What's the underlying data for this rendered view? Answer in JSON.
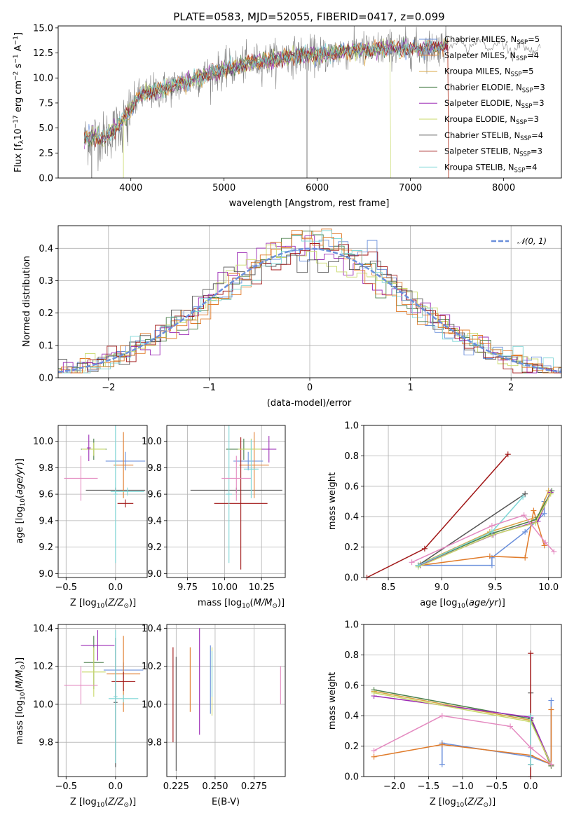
{
  "colors": [
    "#6A8FDB",
    "#E07B2A",
    "#D9A441",
    "#4A7F4A",
    "#9B2AB5",
    "#C8D96A",
    "#555555",
    "#A01515",
    "#7ED6D6"
  ],
  "chart_data": [
    {
      "id": "spectrum",
      "type": "line",
      "title": "PLATE=0583, MJD=52055, FIBERID=0417, z=0.099",
      "xlabel": "wavelength [Angstrom, rest frame]",
      "ylabel": "Flux [f$_\\lambda$10$^{-17}$ erg cm$^{-2}$ s$^{-1}$ A$^{-1}$]",
      "xlim": [
        3220,
        8620
      ],
      "ylim": [
        0,
        15.2
      ],
      "xticks": [
        "4000",
        "5000",
        "6000",
        "7000",
        "8000"
      ],
      "yticks": [
        "0.0",
        "2.5",
        "5.0",
        "7.5",
        "10.0",
        "12.5",
        "15.0"
      ],
      "legend_position": "right",
      "legend": [
        "Chabrier MILES, N$_{SSP}$=5",
        "Salpeter MILES, N$_{SSP}$=4",
        "Kroupa MILES, N$_{SSP}$=5",
        "Chabrier ELODIE, N$_{SSP}$=3",
        "Salpeter ELODIE, N$_{SSP}$=3",
        "Kroupa ELODIE, N$_{SSP}$=3",
        "Chabrier STELIB, N$_{SSP}$=4",
        "Salpeter STELIB, N$_{SSP}$=3",
        "Kroupa STELIB, N$_{SSP}$=4"
      ],
      "continuum": {
        "x": [
          3500,
          3600,
          3700,
          3800,
          3900,
          4000,
          4100,
          4200,
          4400,
          4600,
          4800,
          5000,
          5200,
          5400,
          5600,
          5800,
          6000,
          6200,
          6400,
          6600,
          6800,
          7000,
          7200,
          7400,
          7600,
          7800,
          8000,
          8200,
          8400
        ],
        "y": [
          3.8,
          4.2,
          4.0,
          4.6,
          5.5,
          7.0,
          8.2,
          8.5,
          9.0,
          9.6,
          10.3,
          10.8,
          11.3,
          11.7,
          12.0,
          12.3,
          12.3,
          12.5,
          12.8,
          12.8,
          13.0,
          12.9,
          13.0,
          13.3,
          13.4,
          13.3,
          13.2,
          13.0,
          12.9
        ]
      }
    },
    {
      "id": "residuals",
      "type": "line",
      "xlabel": "(data-model)/error",
      "ylabel": "Normed distribution",
      "xlim": [
        -2.5,
        2.5
      ],
      "ylim": [
        0,
        0.47
      ],
      "xticks": [
        "−2",
        "−1",
        "0",
        "1",
        "2"
      ],
      "yticks": [
        "0.0",
        "0.1",
        "0.2",
        "0.3",
        "0.4"
      ],
      "legend": [
        "$\\mathcal{N}(0,1)$"
      ],
      "legend_position": "top-right"
    },
    {
      "id": "age_vs_Z",
      "type": "scatter",
      "xlabel": "Z [log$_{10}$(Z/Z$_\\odot$)]",
      "ylabel": "age  [log$_{10}$(age/yr)]",
      "xlim": [
        -0.58,
        0.32
      ],
      "ylim": [
        8.97,
        10.12
      ],
      "xticks": [
        "−0.5",
        "0.0"
      ],
      "xtickv": [
        -0.5,
        0.0
      ],
      "yticks": [
        "9.0",
        "9.2",
        "9.4",
        "9.6",
        "9.8",
        "10.0"
      ],
      "ytickv": [
        9.0,
        9.2,
        9.4,
        9.6,
        9.8,
        10.0
      ]
    },
    {
      "id": "age_vs_mass",
      "type": "scatter",
      "xlabel": "mass [log$_{10}$(M/M$_\\odot$)]",
      "xlim": [
        9.61,
        10.41
      ],
      "ylim": [
        8.97,
        10.12
      ],
      "xticks": [
        "9.75",
        "10.00",
        "10.25"
      ],
      "xtickv": [
        9.75,
        10.0,
        10.25
      ],
      "yticks": [
        "9.0",
        "9.2",
        "9.4",
        "9.6",
        "9.8",
        "10.0"
      ],
      "ytickv": [
        9.0,
        9.2,
        9.4,
        9.6,
        9.8,
        10.0
      ]
    },
    {
      "id": "weight_vs_age",
      "type": "line",
      "xlabel": "age  [log$_{10}$(age/yr)]",
      "ylabel": "mass weight",
      "xlim": [
        8.27,
        10.12
      ],
      "ylim": [
        0,
        1.0
      ],
      "xticks": [
        "8.5",
        "9.0",
        "9.5",
        "10.0"
      ],
      "xtickv": [
        8.5,
        9.0,
        9.5,
        10.0
      ],
      "yticks": [
        "0.0",
        "0.2",
        "0.4",
        "0.6",
        "0.8",
        "1.0"
      ],
      "ytickv": [
        0,
        0.2,
        0.4,
        0.6,
        0.8,
        1.0
      ],
      "series": [
        {
          "x": [
            8.78,
            9.47,
            9.47,
            9.78,
            9.96,
            9.96
          ],
          "y": [
            0.08,
            0.08,
            0.13,
            0.3,
            0.42,
            0.5
          ]
        },
        {
          "x": [
            8.8,
            9.45,
            9.78,
            9.86,
            9.96
          ],
          "y": [
            0.08,
            0.14,
            0.13,
            0.44,
            0.21
          ]
        },
        {
          "x": [
            8.8,
            9.45,
            9.9,
            10.0
          ],
          "y": [
            0.09,
            0.3,
            0.4,
            0.57
          ]
        },
        {
          "x": [
            8.78,
            9.47,
            9.88,
            10.03
          ],
          "y": [
            0.08,
            0.29,
            0.38,
            0.57
          ]
        },
        {
          "x": [
            8.8,
            9.48,
            9.9,
            10.02
          ],
          "y": [
            0.08,
            0.28,
            0.37,
            0.56
          ]
        },
        {
          "x": [
            8.78,
            9.47,
            9.88,
            10.02
          ],
          "y": [
            0.07,
            0.28,
            0.36,
            0.55
          ]
        },
        {
          "x": [
            8.78,
            9.78
          ],
          "y": [
            0.08,
            0.55
          ]
        },
        {
          "x": [
            8.3,
            8.84,
            9.62
          ],
          "y": [
            0.0,
            0.19,
            0.81
          ]
        },
        {
          "x": [
            8.78,
            9.47,
            9.76
          ],
          "y": [
            0.08,
            0.3,
            0.53
          ]
        },
        {
          "x": [
            8.72,
            9.47,
            9.77,
            9.97,
            10.05
          ],
          "y": [
            0.1,
            0.34,
            0.41,
            0.23,
            0.17
          ]
        }
      ]
    },
    {
      "id": "mass_vs_Z",
      "type": "scatter",
      "xlabel": "Z [log$_{10}$(Z/Z$_\\odot$)]",
      "ylabel": "mass [log$_{10}$(M/M$_\\odot$)]",
      "xlim": [
        -0.58,
        0.32
      ],
      "ylim": [
        9.62,
        10.42
      ],
      "xticks": [
        "−0.5",
        "0.0"
      ],
      "xtickv": [
        -0.5,
        0.0
      ],
      "yticks": [
        "9.8",
        "10.0",
        "10.2",
        "10.4"
      ],
      "ytickv": [
        9.8,
        10.0,
        10.2,
        10.4
      ]
    },
    {
      "id": "mass_vs_EBV",
      "type": "scatter",
      "xlabel": "E(B-V)",
      "xlim": [
        0.219,
        0.295
      ],
      "ylim": [
        9.62,
        10.42
      ],
      "xticks": [
        "0.225",
        "0.250",
        "0.275"
      ],
      "xtickv": [
        0.225,
        0.25,
        0.275
      ],
      "yticks": [
        "9.8",
        "10.0",
        "10.2",
        "10.4"
      ],
      "ytickv": [
        9.8,
        10.0,
        10.2,
        10.4
      ]
    },
    {
      "id": "weight_vs_Z",
      "type": "line",
      "xlabel": "Z [log$_{10}$(Z/Z$_\\odot$)]",
      "ylabel": "mass weight",
      "xlim": [
        -2.45,
        0.45
      ],
      "ylim": [
        0,
        1.0
      ],
      "xticks": [
        "−2.0",
        "−1.5",
        "−1.0",
        "−0.5",
        "0.0"
      ],
      "xtickv": [
        -2.0,
        -1.5,
        -1.0,
        -0.5,
        0.0
      ],
      "yticks": [
        "0.0",
        "0.2",
        "0.4",
        "0.6",
        "0.8",
        "1.0"
      ],
      "ytickv": [
        0,
        0.2,
        0.4,
        0.6,
        0.8,
        1.0
      ],
      "series": [
        {
          "x": [
            -1.3,
            -1.3,
            0.0,
            0.3,
            0.3
          ],
          "y": [
            0.08,
            0.22,
            0.13,
            0.08,
            0.5
          ]
        },
        {
          "x": [
            -2.3,
            -1.3,
            0.0,
            0.3,
            0.3
          ],
          "y": [
            0.13,
            0.21,
            0.14,
            0.08,
            0.44
          ]
        },
        {
          "x": [
            -2.3,
            0.0,
            0.3
          ],
          "y": [
            0.56,
            0.37,
            0.07
          ]
        },
        {
          "x": [
            -2.3,
            0.0,
            0.3
          ],
          "y": [
            0.57,
            0.38,
            0.07
          ]
        },
        {
          "x": [
            -2.3,
            0.0,
            0.3
          ],
          "y": [
            0.53,
            0.39,
            0.08
          ]
        },
        {
          "x": [
            -2.3,
            0.0,
            0.3
          ],
          "y": [
            0.55,
            0.36,
            0.08
          ]
        },
        {
          "x": [
            0.0,
            0.0
          ],
          "y": [
            0.08,
            0.55
          ]
        },
        {
          "x": [
            0.0,
            0.0
          ],
          "y": [
            0.0,
            0.81
          ]
        },
        {
          "x": [
            0.0,
            0.0
          ],
          "y": [
            0.08,
            0.4
          ]
        },
        {
          "x": [
            -2.3,
            -1.3,
            -0.3,
            0.0,
            0.3
          ],
          "y": [
            0.17,
            0.4,
            0.33,
            0.19,
            0.08
          ]
        }
      ]
    }
  ]
}
